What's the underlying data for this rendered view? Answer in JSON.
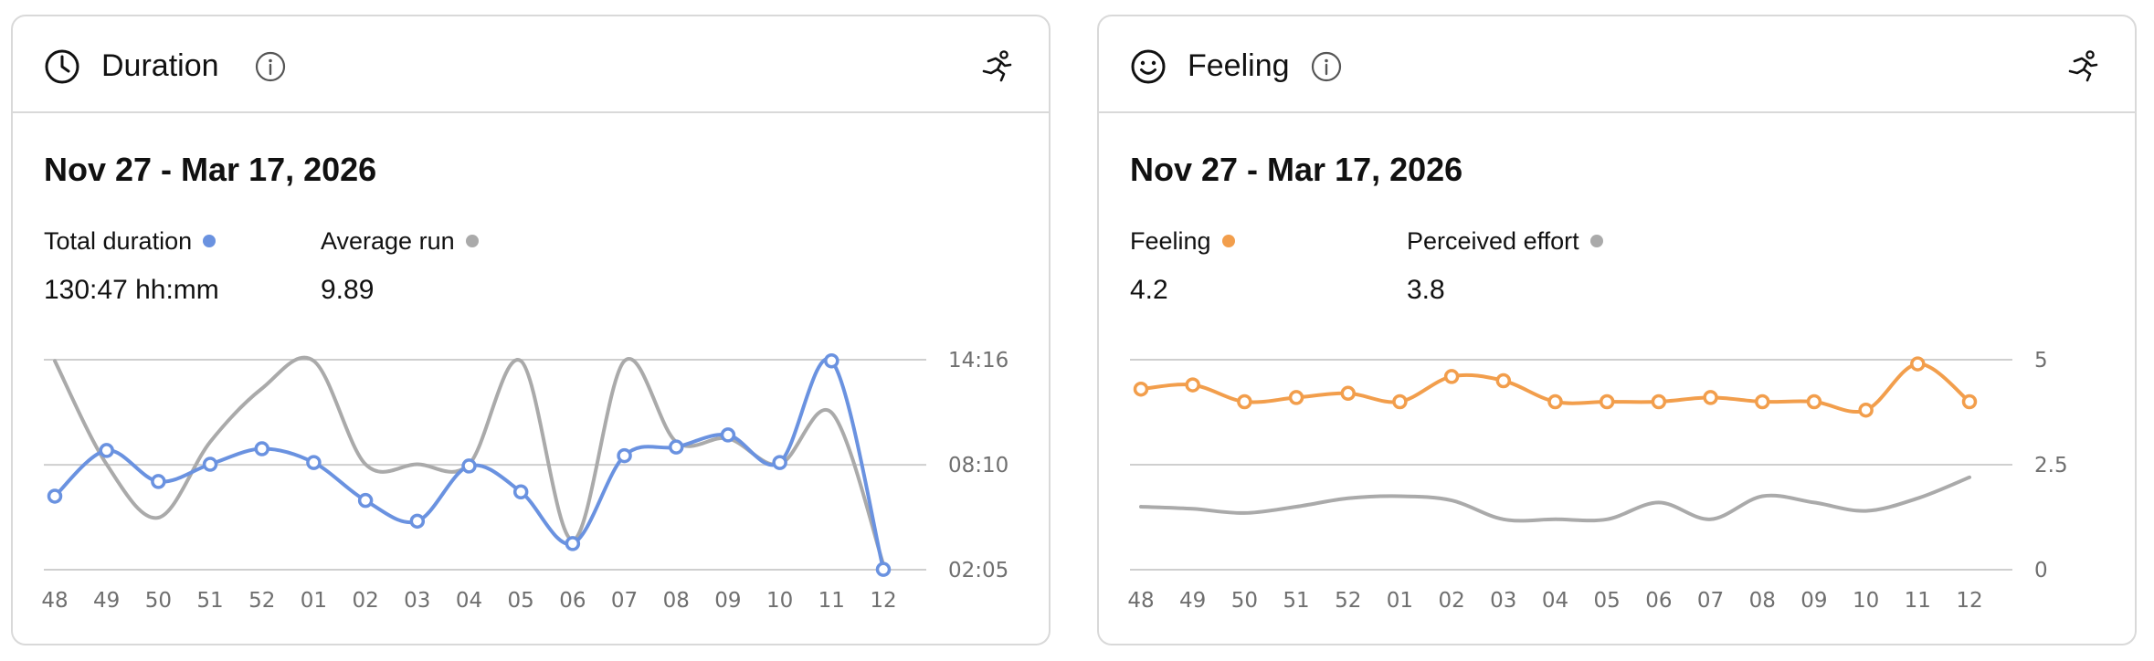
{
  "cards": [
    {
      "title": "Duration",
      "date_range": "Nov 27 - Mar 17, 2026",
      "metrics": [
        {
          "label": "Total duration",
          "value": "130:47 hh:mm",
          "color": "#6a92e0"
        },
        {
          "label": "Average run",
          "value": "9.89",
          "color": "#aaaaaa"
        }
      ]
    },
    {
      "title": "Feeling",
      "date_range": "Nov 27 - Mar 17, 2026",
      "metrics": [
        {
          "label": "Feeling",
          "value": "4.2",
          "color": "#f29e4c"
        },
        {
          "label": "Perceived effort",
          "value": "3.8",
          "color": "#aaaaaa"
        }
      ]
    }
  ],
  "icons": {
    "duration_header": "clock-icon",
    "feeling_header": "smiley-icon",
    "info": "info-icon",
    "activity": "runner-icon"
  },
  "chart_data": [
    {
      "type": "line",
      "categories": [
        "48",
        "49",
        "50",
        "51",
        "52",
        "01",
        "02",
        "03",
        "04",
        "05",
        "06",
        "07",
        "08",
        "09",
        "10",
        "11",
        "12"
      ],
      "ylim": [
        2.083,
        14.267
      ],
      "yticks": [
        {
          "value": 2.083,
          "label": "02:05"
        },
        {
          "value": 8.167,
          "label": "08:10"
        },
        {
          "value": 14.267,
          "label": "14:16"
        }
      ],
      "grid": true,
      "series": [
        {
          "name": "Total duration",
          "color": "#6a92e0",
          "markers": true,
          "values": [
            6.35,
            9.0,
            7.2,
            8.2,
            9.1,
            8.3,
            6.1,
            4.9,
            8.1,
            6.6,
            3.6,
            8.7,
            9.2,
            9.9,
            8.3,
            14.2,
            2.1
          ]
        },
        {
          "name": "Average run",
          "color": "#aaaaaa",
          "markers": false,
          "values": [
            14.2,
            8.2,
            5.1,
            9.5,
            12.6,
            14.2,
            8.2,
            8.2,
            8.2,
            14.2,
            3.8,
            14.2,
            9.5,
            9.7,
            8.2,
            11.2,
            2.4
          ]
        }
      ]
    },
    {
      "type": "line",
      "categories": [
        "48",
        "49",
        "50",
        "51",
        "52",
        "01",
        "02",
        "03",
        "04",
        "05",
        "06",
        "07",
        "08",
        "09",
        "10",
        "11",
        "12"
      ],
      "ylim": [
        0,
        5
      ],
      "yticks": [
        {
          "value": 0,
          "label": "0"
        },
        {
          "value": 2.5,
          "label": "2.5"
        },
        {
          "value": 5,
          "label": "5"
        }
      ],
      "grid": true,
      "series": [
        {
          "name": "Feeling",
          "color": "#f29e4c",
          "markers": true,
          "values": [
            4.3,
            4.4,
            4.0,
            4.1,
            4.2,
            4.0,
            4.6,
            4.5,
            4.0,
            4.0,
            4.0,
            4.1,
            4.0,
            4.0,
            3.8,
            4.9,
            4.0
          ]
        },
        {
          "name": "Perceived effort",
          "color": "#aaaaaa",
          "markers": false,
          "values": [
            1.5,
            1.45,
            1.35,
            1.5,
            1.7,
            1.75,
            1.65,
            1.2,
            1.2,
            1.2,
            1.6,
            1.2,
            1.75,
            1.6,
            1.4,
            1.7,
            2.2
          ]
        }
      ]
    }
  ]
}
